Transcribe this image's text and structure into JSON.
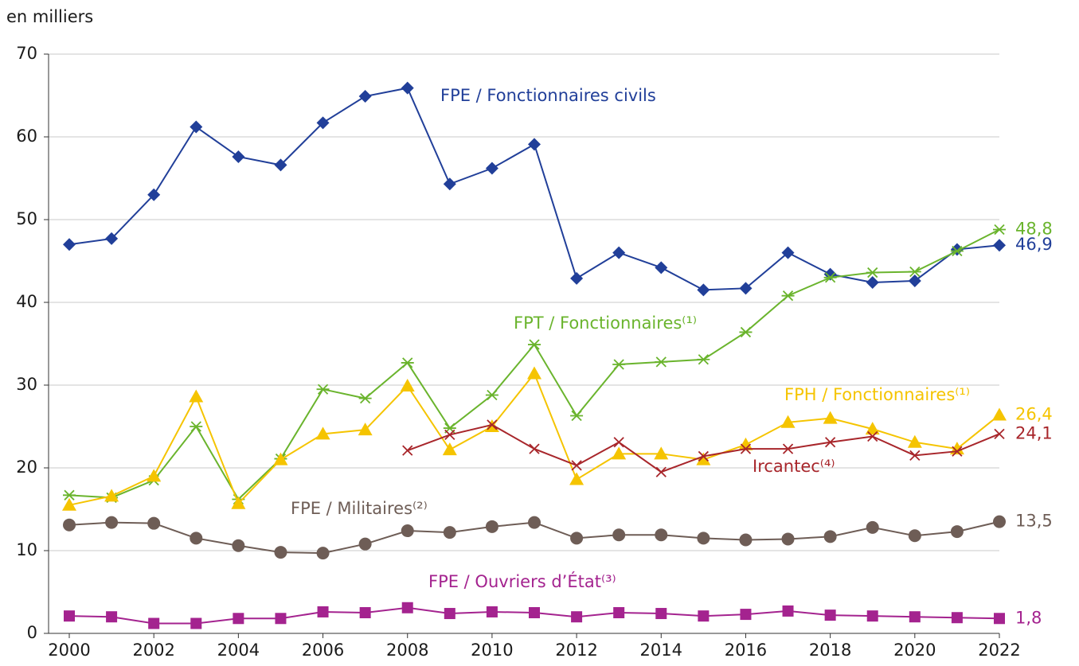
{
  "chart_data": {
    "type": "line",
    "y_label": "en milliers",
    "x": [
      2000,
      2001,
      2002,
      2003,
      2004,
      2005,
      2006,
      2007,
      2008,
      2009,
      2010,
      2011,
      2012,
      2013,
      2014,
      2015,
      2016,
      2017,
      2018,
      2019,
      2020,
      2021,
      2022
    ],
    "xlim": [
      2000,
      2022
    ],
    "xticks": [
      2000,
      2002,
      2004,
      2006,
      2008,
      2010,
      2012,
      2014,
      2016,
      2018,
      2020,
      2022
    ],
    "ylim": [
      0,
      70
    ],
    "yticks": [
      0,
      10,
      20,
      30,
      40,
      50,
      60,
      70
    ],
    "grid": true,
    "series": [
      {
        "name": "FPE / Fonctionnaires civils",
        "color": "#213f99",
        "marker": "diamond",
        "values": [
          47.0,
          47.7,
          53.0,
          61.2,
          57.6,
          56.6,
          61.7,
          64.9,
          65.9,
          54.3,
          56.2,
          59.1,
          42.9,
          46.0,
          44.2,
          41.5,
          41.7,
          46.0,
          43.4,
          42.4,
          42.6,
          46.4,
          46.9
        ],
        "value_labels": [
          null,
          null,
          null,
          null,
          null,
          null,
          null,
          null,
          null,
          null,
          null,
          null,
          null,
          null,
          null,
          null,
          null,
          null,
          null,
          null,
          null,
          null,
          "46,9"
        ]
      },
      {
        "name": "FPT / Fonctionnaires⁽¹⁾",
        "color": "#6ab42d",
        "marker": "asterisk",
        "values": [
          16.7,
          16.4,
          18.5,
          25.0,
          16.2,
          21.1,
          29.5,
          28.4,
          32.7,
          24.8,
          28.8,
          34.9,
          26.3,
          32.5,
          32.8,
          33.1,
          36.4,
          40.8,
          43.0,
          43.6,
          43.7,
          46.2,
          48.8
        ],
        "value_labels": [
          null,
          null,
          null,
          null,
          null,
          null,
          null,
          null,
          null,
          null,
          null,
          null,
          null,
          null,
          null,
          null,
          null,
          null,
          null,
          null,
          null,
          null,
          "48,8"
        ]
      },
      {
        "name": "FPH / Fonctionnaires⁽¹⁾",
        "color": "#f5c400",
        "marker": "triangle",
        "values": [
          15.5,
          16.6,
          19.0,
          28.6,
          15.7,
          21.0,
          24.1,
          24.6,
          29.9,
          22.2,
          25.0,
          31.4,
          18.6,
          21.7,
          21.7,
          21.0,
          22.8,
          25.5,
          26.0,
          24.7,
          23.1,
          22.3,
          26.4
        ],
        "value_labels": [
          null,
          null,
          null,
          null,
          null,
          null,
          null,
          null,
          null,
          null,
          null,
          null,
          null,
          null,
          null,
          null,
          null,
          null,
          null,
          null,
          null,
          null,
          "26,4"
        ]
      },
      {
        "name": "Ircantec⁽⁴⁾",
        "color": "#a8262b",
        "marker": "cross",
        "values": [
          null,
          null,
          null,
          null,
          null,
          null,
          null,
          null,
          22.1,
          24.0,
          25.2,
          22.3,
          20.3,
          23.1,
          19.5,
          21.4,
          22.3,
          22.3,
          23.1,
          23.8,
          21.5,
          22.0,
          24.1
        ],
        "value_labels": [
          null,
          null,
          null,
          null,
          null,
          null,
          null,
          null,
          null,
          null,
          null,
          null,
          null,
          null,
          null,
          null,
          null,
          null,
          null,
          null,
          null,
          null,
          "24,1"
        ]
      },
      {
        "name": "FPE / Militaires⁽²⁾",
        "color": "#6e5d56",
        "marker": "circle",
        "values": [
          13.1,
          13.4,
          13.3,
          11.5,
          10.6,
          9.8,
          9.7,
          10.8,
          12.4,
          12.2,
          12.9,
          13.4,
          11.5,
          11.9,
          11.9,
          11.5,
          11.3,
          11.4,
          11.7,
          12.8,
          11.8,
          12.3,
          13.5
        ],
        "value_labels": [
          null,
          null,
          null,
          null,
          null,
          null,
          null,
          null,
          null,
          null,
          null,
          null,
          null,
          null,
          null,
          null,
          null,
          null,
          null,
          null,
          null,
          null,
          "13,5"
        ]
      },
      {
        "name": "FPE / Ouvriers d’État⁽³⁾",
        "color": "#a4238f",
        "marker": "square",
        "values": [
          2.1,
          2.0,
          1.2,
          1.2,
          1.8,
          1.8,
          2.6,
          2.5,
          3.1,
          2.4,
          2.6,
          2.5,
          2.0,
          2.5,
          2.4,
          2.1,
          2.3,
          2.7,
          2.2,
          2.1,
          2.0,
          1.9,
          1.8
        ],
        "value_labels": [
          null,
          null,
          null,
          null,
          null,
          null,
          null,
          null,
          null,
          null,
          null,
          null,
          null,
          null,
          null,
          null,
          null,
          null,
          null,
          null,
          null,
          null,
          "1,8"
        ]
      }
    ]
  }
}
